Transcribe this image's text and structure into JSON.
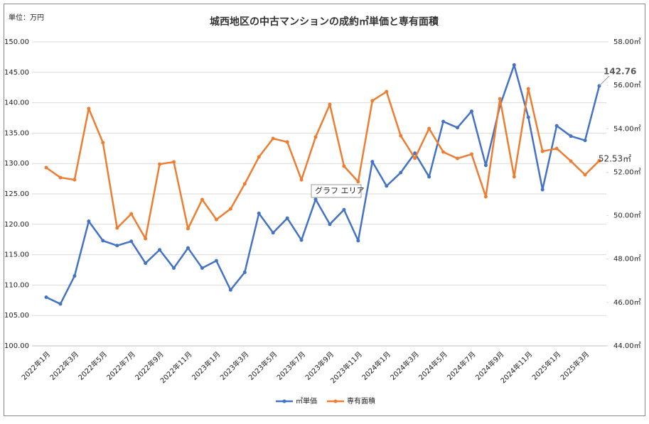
{
  "chart_data": {
    "type": "line",
    "title": "城西地区の中古マンションの成約㎡単価と専有面積",
    "unit_label": "単位：万円",
    "tooltip": "グラフ エリア",
    "categories": [
      "2022年1月",
      null,
      "2022年3月",
      null,
      "2022年5月",
      null,
      "2022年7月",
      null,
      "2022年9月",
      null,
      "2022年11月",
      null,
      "2023年1月",
      null,
      "2023年3月",
      null,
      "2023年5月",
      null,
      "2023年7月",
      null,
      "2023年9月",
      null,
      "2023年11月",
      null,
      "2024年1月",
      null,
      "2024年3月",
      null,
      "2024年5月",
      null,
      "2024年7月",
      null,
      "2024年9月",
      null,
      "2024年11月",
      null,
      "2025年1月",
      null,
      "2025年3月",
      null
    ],
    "series": [
      {
        "name": "㎡単価",
        "color": "#4472c4",
        "values": [
          108.0,
          106.9,
          111.5,
          120.5,
          117.3,
          116.5,
          117.2,
          113.6,
          115.8,
          112.8,
          116.1,
          112.8,
          114.0,
          109.2,
          112.1,
          121.8,
          118.6,
          121.0,
          117.4,
          124.1,
          120.0,
          122.4,
          117.3,
          130.3,
          126.3,
          128.5,
          131.7,
          127.8,
          136.9,
          135.9,
          138.6,
          129.7,
          139.5,
          146.2,
          137.6,
          125.7,
          136.2,
          134.5,
          133.8,
          142.76
        ]
      },
      {
        "name": "専有面積",
        "color": "#ed7d31",
        "axis": "y2",
        "values": [
          52.21,
          51.75,
          51.65,
          54.93,
          53.36,
          49.43,
          50.08,
          48.94,
          52.37,
          52.47,
          49.4,
          50.74,
          49.82,
          50.31,
          51.46,
          52.7,
          53.55,
          53.39,
          51.65,
          53.62,
          55.12,
          52.28,
          51.56,
          55.29,
          55.71,
          53.68,
          52.64,
          54.01,
          52.93,
          52.63,
          52.83,
          50.87,
          55.38,
          51.79,
          55.84,
          52.96,
          53.09,
          52.51,
          51.88,
          52.53
        ],
        "value_labels": [
          null,
          null,
          null,
          null,
          null,
          null,
          null,
          null,
          null,
          null,
          null,
          null,
          null,
          null,
          null,
          null,
          null,
          null,
          null,
          null,
          null,
          null,
          null,
          null,
          null,
          null,
          null,
          null,
          null,
          null,
          null,
          null,
          null,
          null,
          null,
          null,
          null,
          null,
          null,
          "52.53㎡"
        ]
      }
    ],
    "ylim": [
      100,
      150
    ],
    "yticks": [
      {
        "value": 100,
        "label": "100.00"
      },
      {
        "value": 105,
        "label": "105.00"
      },
      {
        "value": 110,
        "label": "110.00"
      },
      {
        "value": 115,
        "label": "115.00"
      },
      {
        "value": 120,
        "label": "120.00"
      },
      {
        "value": 125,
        "label": "125.00"
      },
      {
        "value": 130,
        "label": "130.00"
      },
      {
        "value": 135,
        "label": "135.00"
      },
      {
        "value": 140,
        "label": "140.00"
      },
      {
        "value": 145,
        "label": "145.00"
      },
      {
        "value": 150,
        "label": "150.00"
      }
    ],
    "y2lim": [
      44,
      58
    ],
    "y2ticks": [
      {
        "value": 44,
        "label": "44.00㎡"
      },
      {
        "value": 46,
        "label": "46.00㎡"
      },
      {
        "value": 48,
        "label": "48.00㎡"
      },
      {
        "value": 50,
        "label": "50.00㎡"
      },
      {
        "value": 52,
        "label": "52.00㎡"
      },
      {
        "value": 54,
        "label": "54.00㎡"
      },
      {
        "value": 56,
        "label": "56.00㎡"
      },
      {
        "value": 58,
        "label": "58.00㎡"
      }
    ],
    "grid": true,
    "legend": "bottom"
  }
}
